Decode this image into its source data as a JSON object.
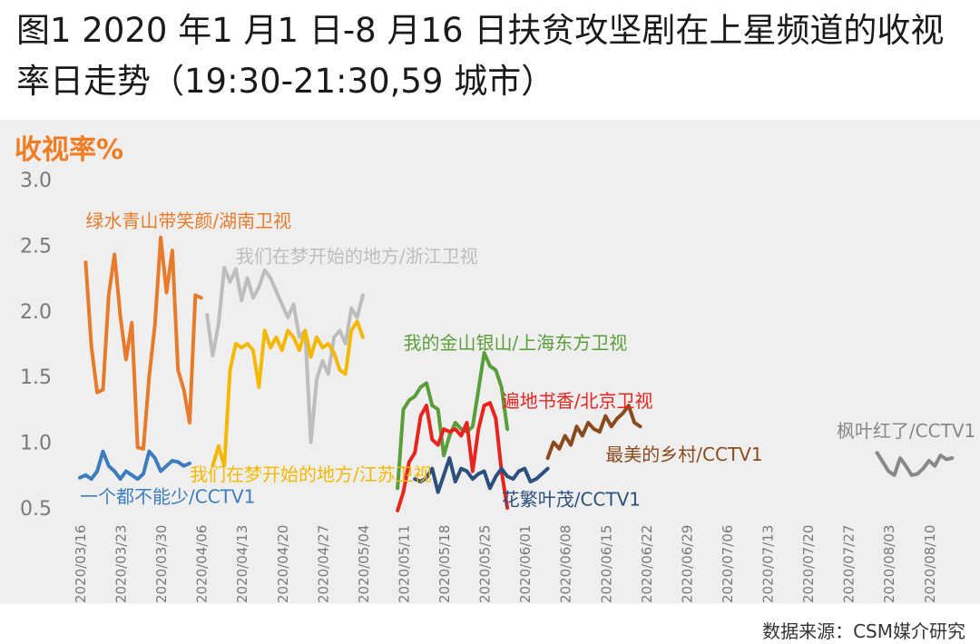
{
  "title": "图1 2020 年1 月1 日-8 月16 日扶贫攻坚剧在上星频道的收视率日走势（19:30-21:30,59 城市）",
  "source": "数据来源：CSM媒介研究",
  "colors": {
    "orange": "#e87b2b",
    "gray": "#bdbdbd",
    "yellow": "#f5b800",
    "blue": "#3e7cc0",
    "green": "#5a9e3a",
    "red": "#e8241f",
    "navy": "#2d4f7c",
    "brown": "#8b4a1e",
    "darkgray": "#888888"
  },
  "chart_data": {
    "type": "line",
    "title": "",
    "ylabel": "收视率%",
    "xlabel": "",
    "ylim": [
      0.5,
      3.0
    ],
    "yticks": [
      "3.0",
      "2.5",
      "2.0",
      "1.5",
      "1.0",
      "0.5"
    ],
    "x_range": [
      "2020/03/16",
      "2020/08/16"
    ],
    "xticks": [
      "2020/03/16",
      "2020/03/23",
      "2020/03/30",
      "2020/04/06",
      "2020/04/13",
      "2020/04/20",
      "2020/04/27",
      "2020/05/04",
      "2020/05/11",
      "2020/05/18",
      "2020/05/25",
      "2020/06/01",
      "2020/06/08",
      "2020/06/15",
      "2020/06/22",
      "2020/06/29",
      "2020/07/06",
      "2020/07/13",
      "2020/07/20",
      "2020/07/27",
      "2020/08/03",
      "2020/08/10"
    ],
    "series": [
      {
        "name": "绿水青山带笑颜/湖南卫视",
        "color": "orange",
        "x": [
          "2020/03/17",
          "2020/03/18",
          "2020/03/19",
          "2020/03/20",
          "2020/03/21",
          "2020/03/22",
          "2020/03/23",
          "2020/03/24",
          "2020/03/25",
          "2020/03/26",
          "2020/03/27",
          "2020/03/28",
          "2020/03/29",
          "2020/03/30",
          "2020/03/31",
          "2020/04/01",
          "2020/04/02",
          "2020/04/03",
          "2020/04/04",
          "2020/04/05",
          "2020/04/06"
        ],
        "y": [
          2.37,
          1.73,
          1.38,
          1.4,
          2.12,
          2.43,
          1.96,
          1.63,
          1.91,
          0.96,
          0.95,
          1.5,
          1.9,
          2.56,
          2.14,
          2.46,
          1.55,
          1.4,
          1.15,
          2.12,
          2.1
        ]
      },
      {
        "name": "我们在梦开始的地方/浙江卫视",
        "color": "gray",
        "x": [
          "2020/04/07",
          "2020/04/08",
          "2020/04/09",
          "2020/04/10",
          "2020/04/11",
          "2020/04/12",
          "2020/04/13",
          "2020/04/14",
          "2020/04/15",
          "2020/04/16",
          "2020/04/17",
          "2020/04/18",
          "2020/04/19",
          "2020/04/20",
          "2020/04/21",
          "2020/04/22",
          "2020/04/23",
          "2020/04/24",
          "2020/04/25",
          "2020/04/26",
          "2020/04/27",
          "2020/04/28",
          "2020/04/29",
          "2020/04/30",
          "2020/05/01",
          "2020/05/02",
          "2020/05/03",
          "2020/05/04"
        ],
        "y": [
          1.97,
          1.66,
          1.9,
          2.33,
          2.22,
          2.32,
          2.08,
          2.25,
          2.1,
          2.18,
          2.31,
          2.25,
          2.15,
          2.05,
          1.95,
          2.05,
          1.8,
          1.85,
          1.0,
          1.48,
          1.62,
          1.52,
          1.8,
          1.85,
          1.75,
          2.02,
          1.95,
          2.12
        ]
      },
      {
        "name": "我们在梦开始的地方/江苏卫视",
        "color": "yellow",
        "x": [
          "2020/04/08",
          "2020/04/09",
          "2020/04/10",
          "2020/04/11",
          "2020/04/12",
          "2020/04/13",
          "2020/04/14",
          "2020/04/15",
          "2020/04/16",
          "2020/04/17",
          "2020/04/18",
          "2020/04/19",
          "2020/04/20",
          "2020/04/21",
          "2020/04/22",
          "2020/04/23",
          "2020/04/24",
          "2020/04/25",
          "2020/04/26",
          "2020/04/27",
          "2020/04/28",
          "2020/04/29",
          "2020/04/30",
          "2020/05/01",
          "2020/05/02",
          "2020/05/03",
          "2020/05/04"
        ],
        "y": [
          0.82,
          0.97,
          0.82,
          1.55,
          1.75,
          1.72,
          1.75,
          1.7,
          1.42,
          1.85,
          1.72,
          1.8,
          1.7,
          1.85,
          1.8,
          1.7,
          1.85,
          1.65,
          1.8,
          1.72,
          1.75,
          1.68,
          1.55,
          1.52,
          1.85,
          1.92,
          1.8
        ]
      },
      {
        "name": "一个都不能少/CCTV1",
        "color": "blue",
        "x": [
          "2020/03/16",
          "2020/03/17",
          "2020/03/18",
          "2020/03/19",
          "2020/03/20",
          "2020/03/21",
          "2020/03/22",
          "2020/03/23",
          "2020/03/24",
          "2020/03/25",
          "2020/03/26",
          "2020/03/27",
          "2020/03/28",
          "2020/03/29",
          "2020/03/30",
          "2020/03/31",
          "2020/04/01",
          "2020/04/02",
          "2020/04/03",
          "2020/04/04"
        ],
        "y": [
          0.73,
          0.75,
          0.72,
          0.78,
          0.93,
          0.82,
          0.78,
          0.72,
          0.78,
          0.75,
          0.72,
          0.76,
          0.93,
          0.88,
          0.78,
          0.82,
          0.86,
          0.85,
          0.82,
          0.84
        ]
      },
      {
        "name": "我的金山银山/上海东方卫视",
        "color": "green",
        "x": [
          "2020/05/10",
          "2020/05/11",
          "2020/05/12",
          "2020/05/13",
          "2020/05/14",
          "2020/05/15",
          "2020/05/16",
          "2020/05/17",
          "2020/05/18",
          "2020/05/19",
          "2020/05/20",
          "2020/05/21",
          "2020/05/22",
          "2020/05/23",
          "2020/05/24",
          "2020/05/25",
          "2020/05/26",
          "2020/05/27",
          "2020/05/28",
          "2020/05/29"
        ],
        "y": [
          0.65,
          1.25,
          1.32,
          1.35,
          1.42,
          1.45,
          1.28,
          1.25,
          0.9,
          1.05,
          1.15,
          1.1,
          1.08,
          1.12,
          1.4,
          1.68,
          1.58,
          1.55,
          1.42,
          1.1
        ]
      },
      {
        "name": "遍地书香/北京卫视",
        "color": "red",
        "x": [
          "2020/05/10",
          "2020/05/11",
          "2020/05/12",
          "2020/05/13",
          "2020/05/14",
          "2020/05/15",
          "2020/05/16",
          "2020/05/17",
          "2020/05/18",
          "2020/05/19",
          "2020/05/20",
          "2020/05/21",
          "2020/05/22",
          "2020/05/23",
          "2020/05/24",
          "2020/05/25",
          "2020/05/26",
          "2020/05/27",
          "2020/05/28",
          "2020/05/29"
        ],
        "y": [
          0.48,
          0.62,
          0.85,
          0.92,
          1.2,
          1.28,
          1.02,
          0.98,
          1.1,
          1.08,
          1.1,
          1.05,
          1.15,
          0.78,
          1.1,
          1.28,
          1.3,
          1.18,
          0.78,
          0.5
        ]
      },
      {
        "name": "花繁叶茂/CCTV1",
        "color": "navy",
        "x": [
          "2020/05/13",
          "2020/05/14",
          "2020/05/15",
          "2020/05/16",
          "2020/05/17",
          "2020/05/18",
          "2020/05/19",
          "2020/05/20",
          "2020/05/21",
          "2020/05/22",
          "2020/05/23",
          "2020/05/24",
          "2020/05/25",
          "2020/05/26",
          "2020/05/27",
          "2020/05/28",
          "2020/05/29",
          "2020/05/30",
          "2020/05/31",
          "2020/06/01",
          "2020/06/02",
          "2020/06/03",
          "2020/06/04",
          "2020/06/05"
        ],
        "y": [
          0.72,
          0.7,
          0.73,
          0.8,
          0.62,
          0.75,
          0.88,
          0.7,
          0.8,
          0.78,
          0.72,
          0.76,
          0.78,
          0.65,
          0.74,
          0.8,
          0.74,
          0.72,
          0.78,
          0.8,
          0.7,
          0.72,
          0.76,
          0.8
        ]
      },
      {
        "name": "最美的乡村/CCTV1",
        "color": "brown",
        "x": [
          "2020/06/05",
          "2020/06/06",
          "2020/06/07",
          "2020/06/08",
          "2020/06/09",
          "2020/06/10",
          "2020/06/11",
          "2020/06/12",
          "2020/06/13",
          "2020/06/14",
          "2020/06/15",
          "2020/06/16",
          "2020/06/17",
          "2020/06/18",
          "2020/06/19",
          "2020/06/20",
          "2020/06/21"
        ],
        "y": [
          0.88,
          1.0,
          0.95,
          1.05,
          0.98,
          1.12,
          1.05,
          1.15,
          1.1,
          1.08,
          1.2,
          1.12,
          1.18,
          1.22,
          1.28,
          1.15,
          1.12
        ]
      },
      {
        "name": "枫叶红了/CCTV1",
        "color": "darkgray",
        "x": [
          "2020/08/01",
          "2020/08/02",
          "2020/08/03",
          "2020/08/04",
          "2020/08/05",
          "2020/08/06",
          "2020/08/07",
          "2020/08/08",
          "2020/08/09",
          "2020/08/10",
          "2020/08/11",
          "2020/08/12",
          "2020/08/13",
          "2020/08/14"
        ],
        "y": [
          0.92,
          0.85,
          0.78,
          0.75,
          0.88,
          0.82,
          0.75,
          0.76,
          0.8,
          0.86,
          0.82,
          0.9,
          0.87,
          0.88
        ]
      }
    ],
    "annotations": [
      {
        "text": "绿水青山带笑颜/湖南卫视",
        "color": "orange",
        "x": "2020/03/17",
        "y": 2.7
      },
      {
        "text": "我们在梦开始的地方/浙江卫视",
        "color": "gray",
        "x": "2020/04/12",
        "y": 2.43
      },
      {
        "text": "我们在梦开始的地方/江苏卫视",
        "color": "yellow",
        "x": "2020/04/04",
        "y": 0.77
      },
      {
        "text": "一个都不能少/CCTV1",
        "color": "blue",
        "x": "2020/03/16",
        "y": 0.6
      },
      {
        "text": "我的金山银山/上海东方卫视",
        "color": "green",
        "x": "2020/05/11",
        "y": 1.77
      },
      {
        "text": "遍地书香/北京卫视",
        "color": "red",
        "x": "2020/05/28",
        "y": 1.33
      },
      {
        "text": "花繁叶茂/CCTV1",
        "color": "navy",
        "x": "2020/05/28",
        "y": 0.58
      },
      {
        "text": "最美的乡村/CCTV1",
        "color": "brown",
        "x": "2020/06/15",
        "y": 0.92
      },
      {
        "text": "枫叶红了/CCTV1",
        "color": "darkgray",
        "x": "2020/07/25",
        "y": 1.1
      }
    ]
  }
}
